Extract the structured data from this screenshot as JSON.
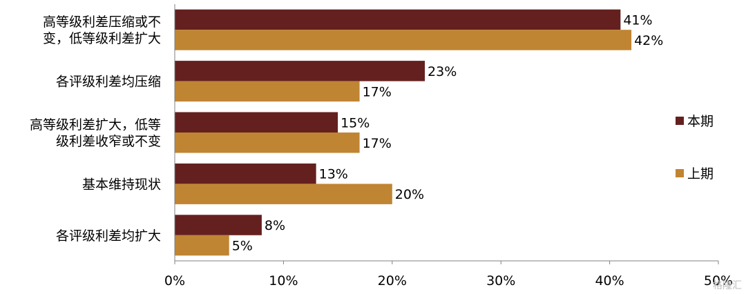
{
  "chart_data": {
    "type": "bar",
    "orientation": "horizontal",
    "categories": [
      [
        "高等级利差压缩或不",
        "变，低等级利差扩大"
      ],
      [
        "各评级利差均压缩"
      ],
      [
        "高等级利差扩大，低等",
        "级利差收窄或不变"
      ],
      [
        "基本维持现状"
      ],
      [
        "各评级利差均扩大"
      ]
    ],
    "series": [
      {
        "name": "本期",
        "color": "#64201f",
        "values": [
          41,
          23,
          15,
          13,
          8
        ],
        "labels": [
          "41%",
          "23%",
          "15%",
          "13%",
          "8%"
        ]
      },
      {
        "name": "上期",
        "color": "#c08532",
        "values": [
          42,
          17,
          17,
          20,
          5
        ],
        "labels": [
          "42%",
          "17%",
          "17%",
          "20%",
          "5%"
        ]
      }
    ],
    "xlim": [
      0,
      50
    ],
    "xticks": [
      0,
      10,
      20,
      30,
      40,
      50
    ],
    "xtick_labels": [
      "0%",
      "10%",
      "20%",
      "30%",
      "40%",
      "50%"
    ],
    "legend_position": "right",
    "grid": false
  },
  "watermark": "格隆汇"
}
